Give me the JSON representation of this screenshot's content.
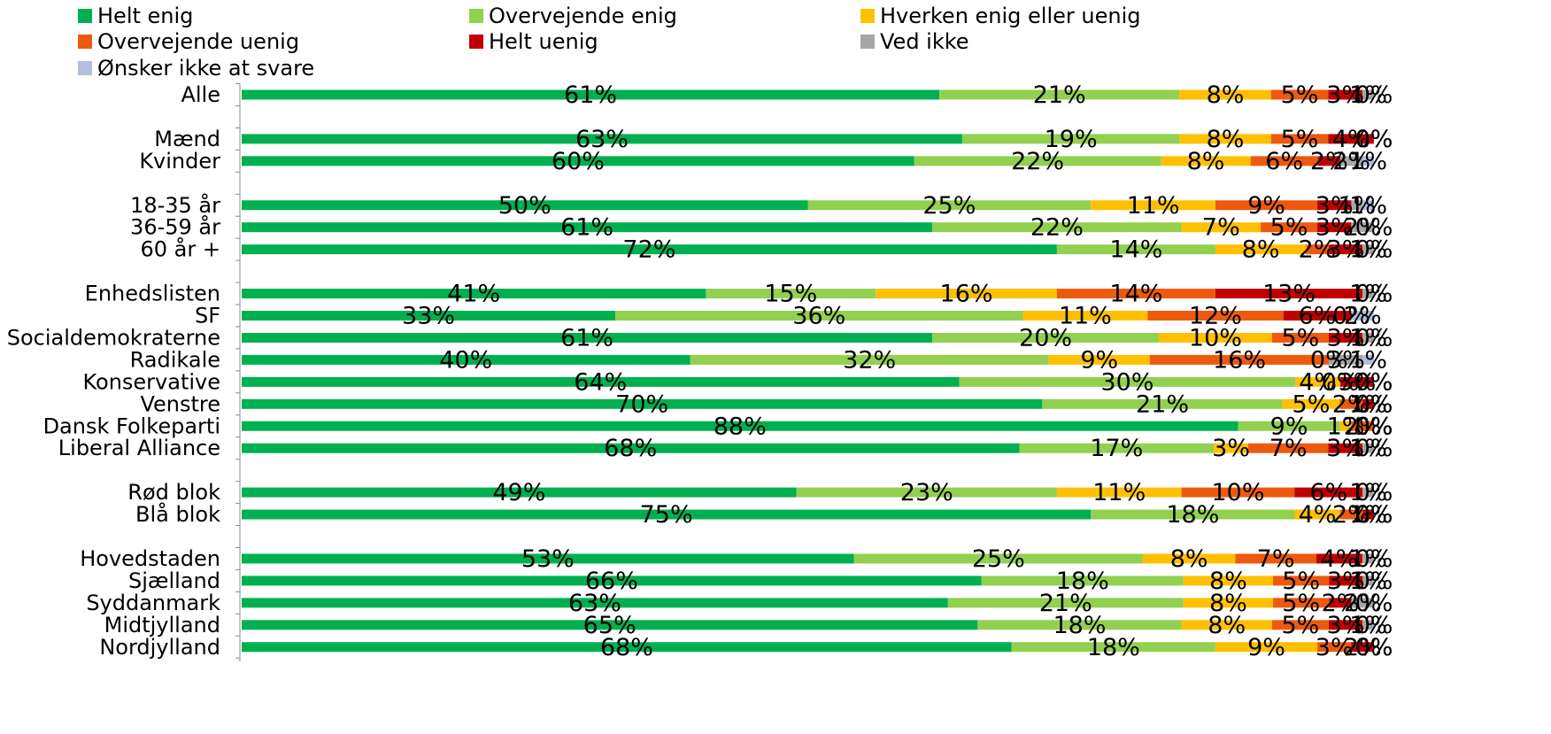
{
  "chart_data": {
    "type": "bar",
    "orientation": "horizontal",
    "stacked": "percent",
    "grid": false,
    "legend_position": "top",
    "colors": [
      "#00B050",
      "#92D050",
      "#FFC000",
      "#ED5A0E",
      "#C00000",
      "#A6A6A6",
      "#B4BEDE"
    ],
    "series": [
      {
        "name": "Helt enig"
      },
      {
        "name": "Overvejende enig"
      },
      {
        "name": "Hverken enig eller uenig"
      },
      {
        "name": "Overvejende uenig"
      },
      {
        "name": "Helt uenig"
      },
      {
        "name": "Ved ikke"
      },
      {
        "name": "Ønsker ikke at svare"
      }
    ],
    "groups": [
      {
        "rows": [
          {
            "label": "Alle",
            "values": [
              61,
              21,
              8,
              5,
              3,
              1,
              0
            ]
          }
        ]
      },
      {
        "rows": [
          {
            "label": "Mænd",
            "values": [
              63,
              19,
              8,
              5,
              4,
              0,
              0
            ]
          },
          {
            "label": "Kvinder",
            "values": [
              60,
              22,
              8,
              6,
              2,
              2,
              1
            ]
          }
        ]
      },
      {
        "rows": [
          {
            "label": "18-35 år",
            "values": [
              50,
              25,
              11,
              9,
              3,
              1,
              1
            ]
          },
          {
            "label": "36-59 år",
            "values": [
              61,
              22,
              7,
              5,
              3,
              2,
              0
            ]
          },
          {
            "label": "60 år +",
            "values": [
              72,
              14,
              8,
              2,
              3,
              1,
              0
            ]
          }
        ]
      },
      {
        "rows": [
          {
            "label": "Enhedslisten",
            "values": [
              41,
              15,
              16,
              14,
              13,
              1,
              0
            ]
          },
          {
            "label": "SF",
            "values": [
              33,
              36,
              11,
              12,
              6,
              0,
              2
            ]
          },
          {
            "label": "Socialdemokraterne",
            "values": [
              61,
              20,
              10,
              5,
              3,
              1,
              0
            ]
          },
          {
            "label": "Radikale",
            "values": [
              40,
              32,
              9,
              16,
              0,
              3,
              1
            ]
          },
          {
            "label": "Konservative",
            "values": [
              64,
              30,
              4,
              0,
              3,
              0,
              0
            ]
          },
          {
            "label": "Venstre",
            "values": [
              70,
              21,
              5,
              2,
              1,
              0,
              0
            ]
          },
          {
            "label": "Dansk Folkeparti",
            "values": [
              88,
              9,
              1,
              2,
              0,
              0,
              0
            ]
          },
          {
            "label": "Liberal Alliance",
            "values": [
              68,
              17,
              3,
              7,
              3,
              1,
              0
            ]
          }
        ]
      },
      {
        "rows": [
          {
            "label": "Rød blok",
            "values": [
              49,
              23,
              11,
              10,
              6,
              1,
              0
            ]
          },
          {
            "label": "Blå blok",
            "values": [
              75,
              18,
              4,
              2,
              1,
              0,
              0
            ]
          }
        ]
      },
      {
        "rows": [
          {
            "label": "Hovedstaden",
            "values": [
              53,
              25,
              8,
              7,
              4,
              1,
              0
            ]
          },
          {
            "label": "Sjælland",
            "values": [
              66,
              18,
              8,
              5,
              3,
              1,
              0
            ]
          },
          {
            "label": "Syddanmark",
            "values": [
              63,
              21,
              8,
              5,
              2,
              2,
              0
            ]
          },
          {
            "label": "Midtjylland",
            "values": [
              65,
              18,
              8,
              5,
              3,
              1,
              0
            ]
          },
          {
            "label": "Nordjylland",
            "values": [
              68,
              18,
              9,
              3,
              2,
              0,
              0
            ]
          }
        ]
      }
    ],
    "value_label_suffix": "%"
  }
}
